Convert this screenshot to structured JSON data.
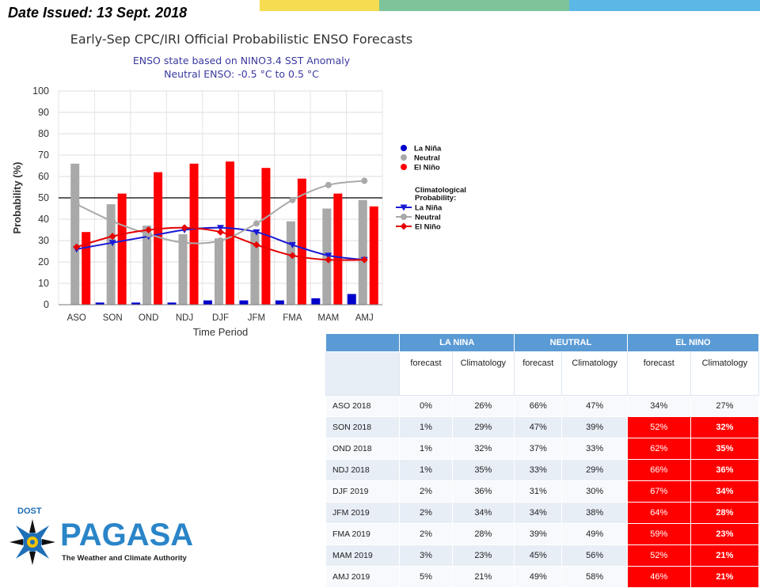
{
  "header": {
    "date_issued": "Date Issued: 13 Sept. 2018",
    "band_colors": [
      "#f5dc50",
      "#7dc49a",
      "#5bb8e6"
    ]
  },
  "chart_data": {
    "type": "bar",
    "title": "Early-Sep CPC/IRI Official Probabilistic ENSO Forecasts",
    "subtitle": [
      "ENSO state based on NINO3.4 SST Anomaly",
      "Neutral ENSO: -0.5 °C to 0.5 °C"
    ],
    "xlabel": "Time Period",
    "ylabel": "Probability (%)",
    "ylim": [
      0,
      100
    ],
    "yticks": [
      0,
      10,
      20,
      30,
      40,
      50,
      60,
      70,
      80,
      90,
      100
    ],
    "reference_line": 50,
    "grid": true,
    "categories": [
      "ASO",
      "SON",
      "OND",
      "NDJ",
      "DJF",
      "JFM",
      "FMA",
      "MAM",
      "AMJ"
    ],
    "series": [
      {
        "name": "La Niña",
        "kind": "bar",
        "color": "#0000cc",
        "values": [
          0,
          1,
          1,
          1,
          2,
          2,
          2,
          3,
          5
        ]
      },
      {
        "name": "Neutral",
        "kind": "bar",
        "color": "#a9a9a9",
        "values": [
          66,
          47,
          37,
          33,
          31,
          34,
          39,
          45,
          49
        ]
      },
      {
        "name": "El Niño",
        "kind": "bar",
        "color": "#ff0000",
        "values": [
          34,
          52,
          62,
          66,
          67,
          64,
          59,
          52,
          46
        ]
      }
    ],
    "climatology": [
      {
        "name": "La Niña",
        "marker": "triangle-down",
        "color": "#1a1ad6",
        "values": [
          26,
          29,
          32,
          35,
          36,
          34,
          28,
          23,
          21
        ]
      },
      {
        "name": "Neutral",
        "marker": "circle",
        "color": "#a9a9a9",
        "values": [
          47,
          39,
          33,
          29,
          30,
          38,
          49,
          56,
          58
        ]
      },
      {
        "name": "El Niño",
        "marker": "diamond",
        "color": "#e60000",
        "values": [
          27,
          32,
          35,
          36,
          34,
          28,
          23,
          21,
          21
        ]
      }
    ],
    "legend": {
      "placement": "right",
      "bars_title": "",
      "climatology_title": [
        "Climatological",
        "Probability:"
      ]
    }
  },
  "table": {
    "groups": [
      "LA NINA",
      "NEUTRAL",
      "EL NINO"
    ],
    "subheaders": [
      "forecast",
      "Climatology",
      "forecast",
      "Climatology",
      "forecast",
      "Climatology"
    ],
    "rows": [
      {
        "period": "ASO 2018",
        "values": [
          "0%",
          "26%",
          "66%",
          "47%",
          "34%",
          "27%"
        ],
        "highlight": false
      },
      {
        "period": "SON 2018",
        "values": [
          "1%",
          "29%",
          "47%",
          "39%",
          "52%",
          "32%"
        ],
        "highlight": true
      },
      {
        "period": "OND 2018",
        "values": [
          "1%",
          "32%",
          "37%",
          "33%",
          "62%",
          "35%"
        ],
        "highlight": true
      },
      {
        "period": "NDJ 2018",
        "values": [
          "1%",
          "35%",
          "33%",
          "29%",
          "66%",
          "36%"
        ],
        "highlight": true
      },
      {
        "period": "DJF 2019",
        "values": [
          "2%",
          "36%",
          "31%",
          "30%",
          "67%",
          "34%"
        ],
        "highlight": true
      },
      {
        "period": "JFM 2019",
        "values": [
          "2%",
          "34%",
          "34%",
          "38%",
          "64%",
          "28%"
        ],
        "highlight": true
      },
      {
        "period": "FMA 2019",
        "values": [
          "2%",
          "28%",
          "39%",
          "49%",
          "59%",
          "23%"
        ],
        "highlight": true
      },
      {
        "period": "MAM 2019",
        "values": [
          "3%",
          "23%",
          "45%",
          "56%",
          "52%",
          "21%"
        ],
        "highlight": true
      },
      {
        "period": "AMJ 2019",
        "values": [
          "5%",
          "21%",
          "49%",
          "58%",
          "46%",
          "21%"
        ],
        "highlight": true
      }
    ]
  },
  "logo": {
    "agency": "DOST",
    "name": "PAGASA",
    "tagline": "The Weather and Climate Authority"
  }
}
